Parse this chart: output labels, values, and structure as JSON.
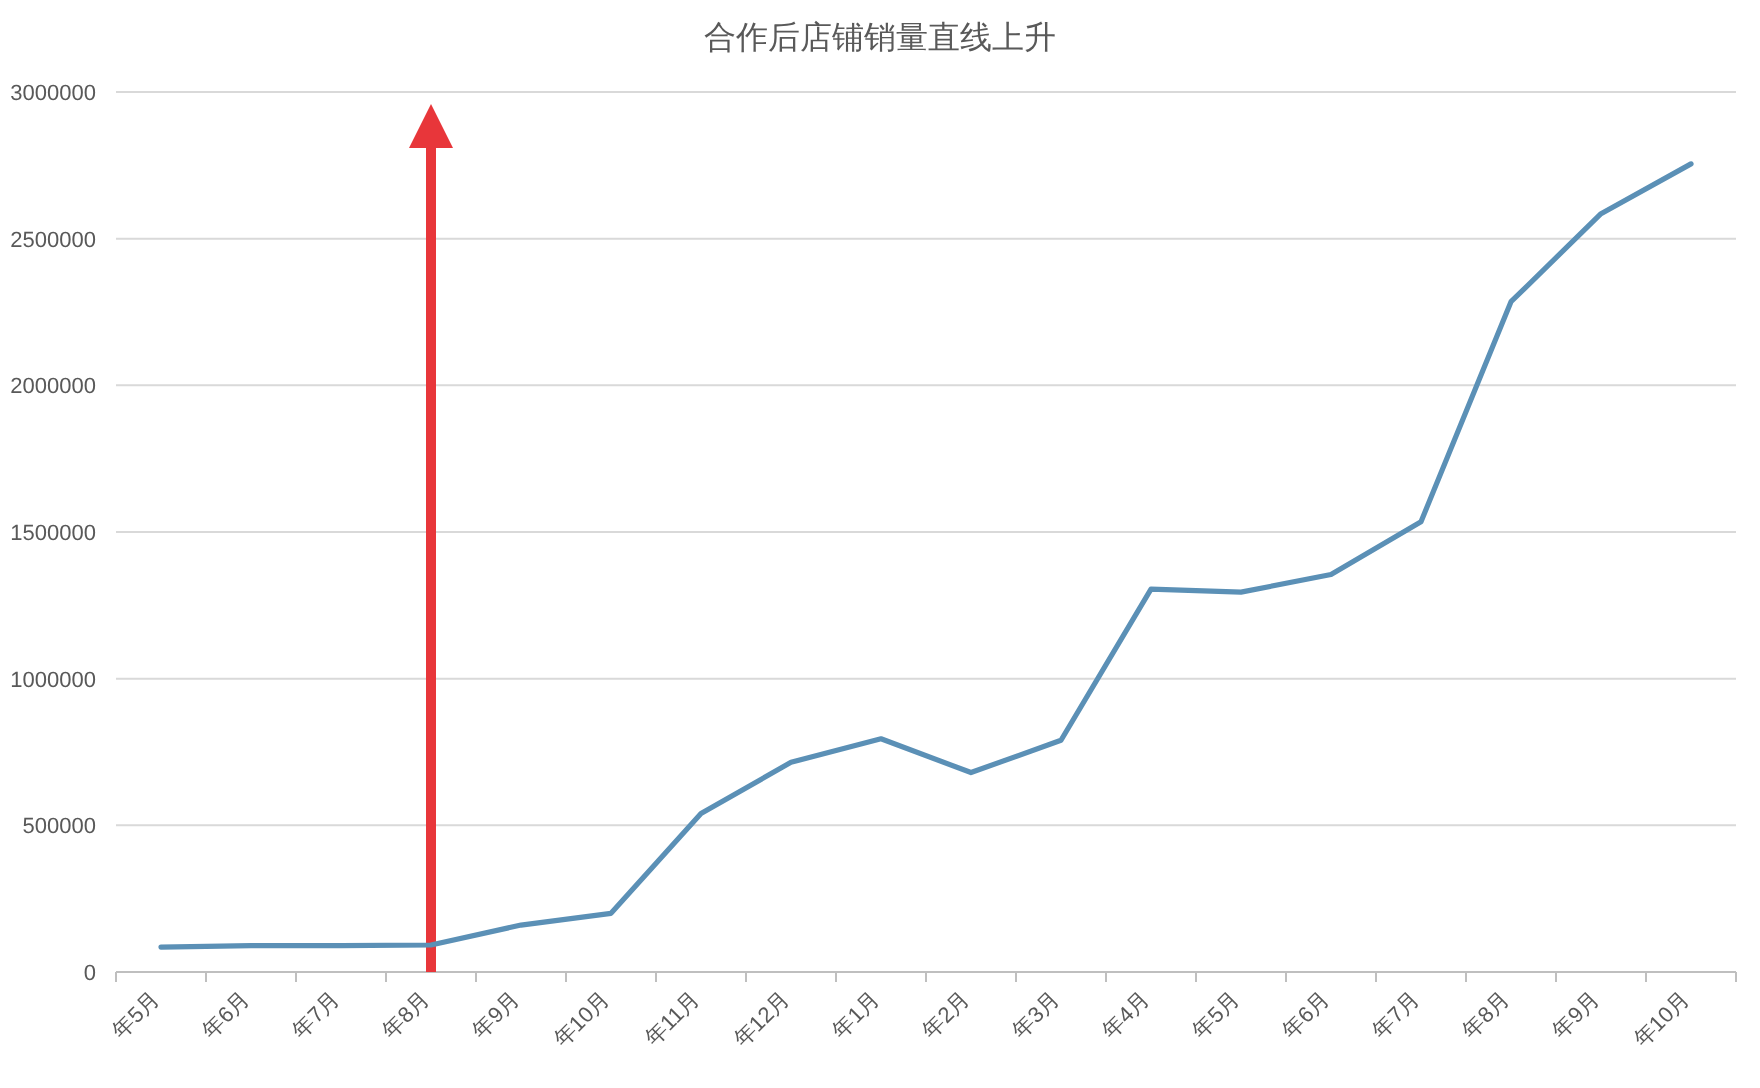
{
  "chart_data": {
    "type": "line",
    "title": "合作后店铺销量直线上升",
    "categories": [
      "年5月",
      "年6月",
      "年7月",
      "年8月",
      "年9月",
      "年10月",
      "年11月",
      "年12月",
      "年1月",
      "年2月",
      "年3月",
      "年4月",
      "年5月",
      "年6月",
      "年7月",
      "年8月",
      "年9月",
      "年10月"
    ],
    "series": [
      {
        "color": "#5b90b6",
        "values": [
          85000,
          90000,
          90000,
          92000,
          160000,
          200000,
          540000,
          715000,
          795000,
          680000,
          790000,
          1305000,
          1295000,
          1355000,
          1535000,
          2285000,
          2585000,
          2755000
        ]
      }
    ],
    "ylim": [
      0,
      3000000
    ],
    "yticks": [
      0,
      500000,
      1000000,
      1500000,
      2000000,
      2500000,
      3000000
    ],
    "grid": "y",
    "marker": "none",
    "line_style": "solid",
    "ref_lines": [
      {
        "axis": "x",
        "value": "年8月",
        "color": "#e8363a"
      }
    ]
  }
}
